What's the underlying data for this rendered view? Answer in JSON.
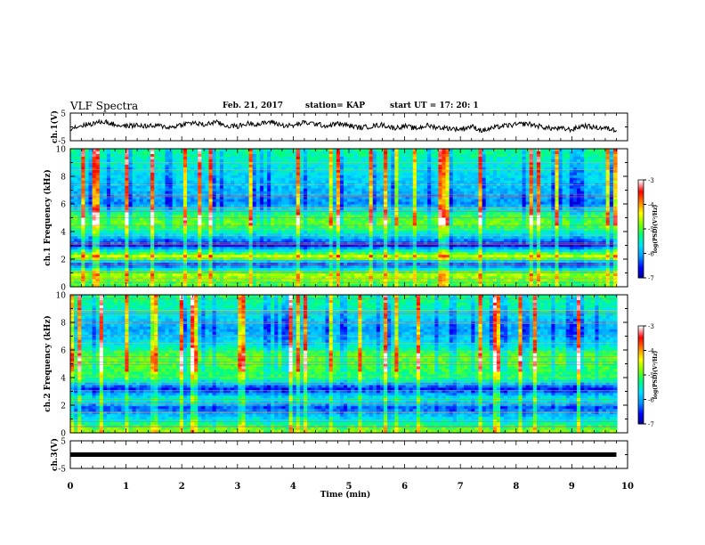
{
  "header": {
    "title": "VLF Spectra",
    "date": "Feb. 21, 2017",
    "station": "station= KAP",
    "start": "start  UT  =   17: 20: 1"
  },
  "chart_data": [
    {
      "type": "line",
      "panel": "ch1-waveform",
      "ylabel": "ch.1(V)",
      "ylim": [
        -5,
        5
      ],
      "yticks": [
        "5",
        "-5"
      ],
      "xlim": [
        0,
        10
      ],
      "color": "#000000",
      "t": [
        0.0,
        0.2,
        0.4,
        0.6,
        0.8,
        1.0,
        1.2,
        1.4,
        1.6,
        1.8,
        2.0,
        2.2,
        2.4,
        2.6,
        2.8,
        3.0,
        3.2,
        3.4,
        3.6,
        3.8,
        4.0,
        4.2,
        4.4,
        4.6,
        4.8,
        5.0,
        5.2,
        5.4,
        5.6,
        5.8,
        6.0,
        6.2,
        6.4,
        6.6,
        6.8,
        7.0,
        7.2,
        7.4,
        7.6,
        7.8,
        8.0,
        8.2,
        8.4,
        8.6,
        8.8,
        9.0,
        9.2,
        9.4,
        9.6,
        9.8
      ],
      "v": [
        -0.5,
        0.5,
        1.2,
        2.0,
        0.8,
        0.3,
        0.6,
        0.2,
        0.4,
        -0.2,
        0.9,
        1.5,
        0.7,
        1.8,
        0.4,
        0.2,
        1.3,
        1.0,
        1.9,
        0.6,
        0.4,
        1.6,
        1.1,
        0.3,
        1.2,
        0.5,
        -0.3,
        0.2,
        0.8,
        -0.4,
        0.3,
        -0.6,
        0.5,
        -0.2,
        -0.5,
        -0.8,
        0.2,
        -1.4,
        -0.3,
        0.4,
        0.8,
        1.2,
        0.3,
        -0.5,
        -0.6,
        -1.0,
        0.5,
        -0.2,
        -0.4,
        -1.2
      ]
    },
    {
      "type": "heatmap",
      "panel": "ch1-spectrogram",
      "ylabel": "ch.1 Frequency  (kHz)",
      "xlim": [
        0,
        10
      ],
      "ylim": [
        0,
        10
      ],
      "yticks": [
        "0",
        "2",
        "4",
        "6",
        "8",
        "10"
      ],
      "colorbar": {
        "label": "log(PSD)(V²/Hz)",
        "range": [
          -7,
          -3
        ],
        "ticks": [
          "-3",
          "-4",
          "-5",
          "-6",
          "-7"
        ],
        "colors": [
          "#00008b",
          "#0000ff",
          "#0096ff",
          "#00e0ff",
          "#00ff80",
          "#80ff00",
          "#ffff00",
          "#ff8000",
          "#ff0000",
          "#ffffff"
        ]
      },
      "freq_profile_log_psd": [
        {
          "f": 0.2,
          "psd": -5.0
        },
        {
          "f": 0.9,
          "psd": -4.6
        },
        {
          "f": 1.6,
          "psd": -6.4
        },
        {
          "f": 2.2,
          "psd": -4.4
        },
        {
          "f": 3.0,
          "psd": -6.6
        },
        {
          "f": 3.8,
          "psd": -5.6
        },
        {
          "f": 4.6,
          "psd": -4.8
        },
        {
          "f": 5.3,
          "psd": -5.2
        },
        {
          "f": 6.0,
          "psd": -6.1
        },
        {
          "f": 7.0,
          "psd": -5.9
        },
        {
          "f": 8.5,
          "psd": -5.6
        },
        {
          "f": 9.8,
          "psd": -5.3
        }
      ]
    },
    {
      "type": "heatmap",
      "panel": "ch2-spectrogram",
      "ylabel": "ch.2 Frequency  (kHz)",
      "xlim": [
        0,
        10
      ],
      "ylim": [
        0,
        10
      ],
      "yticks": [
        "0",
        "2",
        "4",
        "6",
        "8",
        "10"
      ],
      "colorbar": {
        "label": "log(PSD)(V²/Hz)",
        "range": [
          -7,
          -3
        ],
        "ticks": [
          "-3",
          "-4",
          "-5",
          "-6",
          "-7"
        ],
        "colors": [
          "#00008b",
          "#0000ff",
          "#0096ff",
          "#00e0ff",
          "#00ff80",
          "#80ff00",
          "#ffff00",
          "#ff8000",
          "#ff0000",
          "#ffffff"
        ]
      },
      "freq_profile_log_psd": [
        {
          "f": 0.2,
          "psd": -4.8
        },
        {
          "f": 1.0,
          "psd": -5.6
        },
        {
          "f": 1.8,
          "psd": -6.3
        },
        {
          "f": 2.4,
          "psd": -5.4
        },
        {
          "f": 3.2,
          "psd": -6.5
        },
        {
          "f": 3.9,
          "psd": -5.2
        },
        {
          "f": 4.8,
          "psd": -5.0
        },
        {
          "f": 5.6,
          "psd": -4.9
        },
        {
          "f": 6.4,
          "psd": -5.6
        },
        {
          "f": 7.5,
          "psd": -6.0
        },
        {
          "f": 8.8,
          "psd": -5.5
        },
        {
          "f": 9.8,
          "psd": -5.2
        }
      ]
    },
    {
      "type": "line",
      "panel": "ch3-waveform",
      "ylabel": "ch.3(V)",
      "ylim": [
        -5,
        5
      ],
      "yticks": [
        "5",
        "-5"
      ],
      "xlim": [
        0,
        10
      ],
      "color": "#000000",
      "t": [
        0,
        9.8
      ],
      "v": [
        0,
        0
      ]
    }
  ],
  "x_axis": {
    "label": "Time  (min)",
    "ticks": [
      "0",
      "1",
      "2",
      "3",
      "4",
      "5",
      "6",
      "7",
      "8",
      "9",
      "10"
    ]
  }
}
